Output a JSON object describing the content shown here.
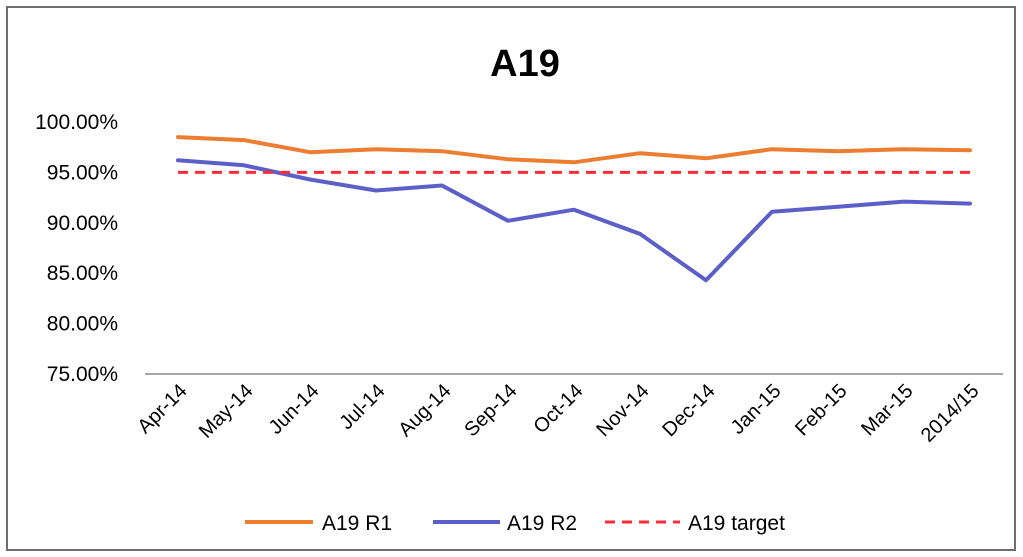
{
  "chart_data": {
    "type": "line",
    "title": "A19",
    "xlabel": "",
    "ylabel": "",
    "categories": [
      "Apr-14",
      "May-14",
      "Jun-14",
      "Jul-14",
      "Aug-14",
      "Sep-14",
      "Oct-14",
      "Nov-14",
      "Dec-14",
      "Jan-15",
      "Feb-15",
      "Mar-15",
      "2014/15"
    ],
    "ylim": [
      75,
      100
    ],
    "yticks": [
      "75.00%",
      "80.00%",
      "85.00%",
      "90.00%",
      "95.00%",
      "100.00%"
    ],
    "ytick_values": [
      75,
      80,
      85,
      90,
      95,
      100
    ],
    "grid": false,
    "legend_position": "bottom",
    "series": [
      {
        "name": "A19 R1",
        "color": "#ed7d31",
        "style": "solid",
        "values": [
          98.5,
          98.2,
          97.0,
          97.3,
          97.1,
          96.3,
          96.0,
          96.9,
          96.4,
          97.3,
          97.1,
          97.3,
          97.2
        ]
      },
      {
        "name": "A19 R2",
        "color": "#5b5fc7",
        "style": "solid",
        "values": [
          96.2,
          95.7,
          94.3,
          93.2,
          93.7,
          90.2,
          91.3,
          88.9,
          84.3,
          91.1,
          91.6,
          92.1,
          91.9
        ]
      },
      {
        "name": "A19 target",
        "color": "#ff2b3b",
        "style": "dashed",
        "values": [
          95,
          95,
          95,
          95,
          95,
          95,
          95,
          95,
          95,
          95,
          95,
          95,
          95
        ]
      }
    ]
  }
}
